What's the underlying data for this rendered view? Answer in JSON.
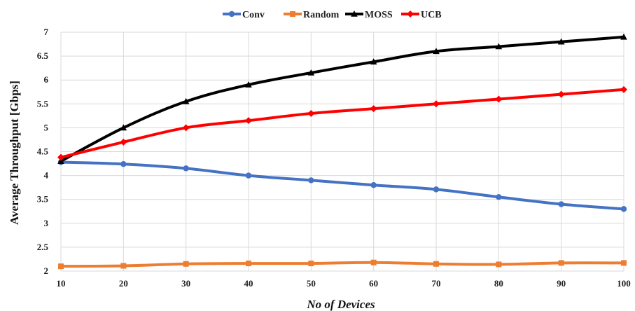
{
  "chart_data": {
    "type": "line",
    "x": [
      10,
      20,
      30,
      40,
      50,
      60,
      70,
      80,
      90,
      100
    ],
    "series": [
      {
        "name": "Conv",
        "color": "#4472C4",
        "marker": "circle",
        "values": [
          4.28,
          4.24,
          4.15,
          4.0,
          3.9,
          3.8,
          3.71,
          3.55,
          3.4,
          3.3
        ]
      },
      {
        "name": "Random",
        "color": "#ED7D31",
        "marker": "square",
        "values": [
          2.1,
          2.11,
          2.15,
          2.16,
          2.16,
          2.18,
          2.15,
          2.14,
          2.17,
          2.17
        ]
      },
      {
        "name": "MOSS",
        "color": "#000000",
        "marker": "triangle",
        "values": [
          4.3,
          5.0,
          5.55,
          5.9,
          6.15,
          6.38,
          6.6,
          6.7,
          6.8,
          6.9
        ]
      },
      {
        "name": "UCB",
        "color": "#FF0000",
        "marker": "diamond",
        "values": [
          4.38,
          4.7,
          5.0,
          5.15,
          5.3,
          5.4,
          5.5,
          5.6,
          5.7,
          5.8
        ]
      }
    ],
    "xlabel": "No of Devices",
    "ylabel": "Average Throughput [Gbps]",
    "ylim": [
      2,
      7
    ],
    "yticks": [
      "2",
      "2.5",
      "3",
      "3.5",
      "4",
      "4.5",
      "5",
      "5.5",
      "6",
      "6.5",
      "7"
    ],
    "xticks": [
      "10",
      "20",
      "30",
      "40",
      "50",
      "60",
      "70",
      "80",
      "90",
      "100"
    ],
    "grid": true,
    "legend_position": "top-center"
  }
}
